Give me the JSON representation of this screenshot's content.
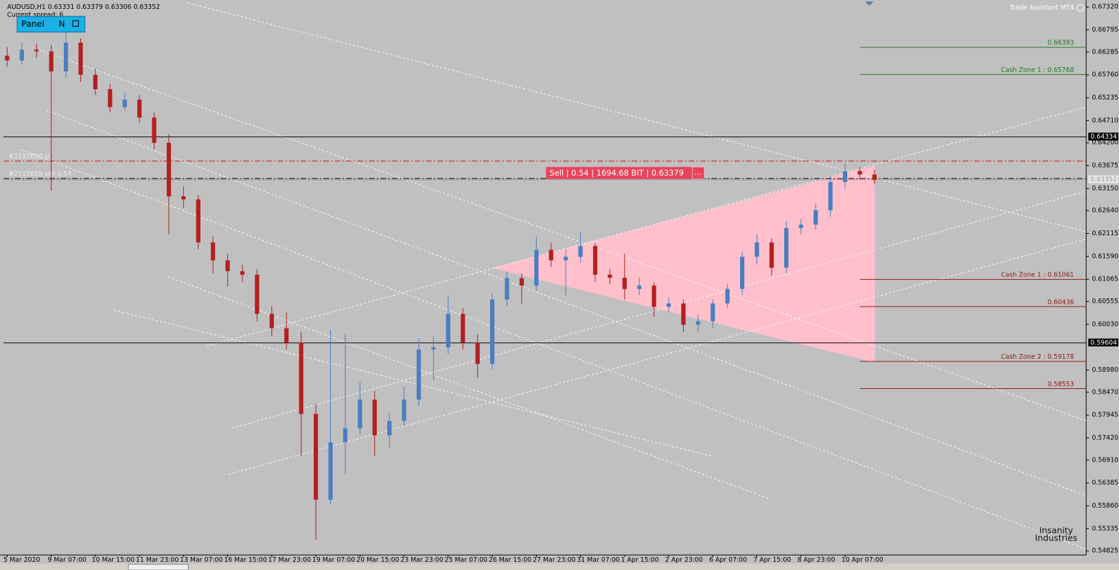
{
  "chart_data": {
    "type": "candlestick",
    "title": "AUDUSD,H1 0.63331 0.63379 0.63306 0.63352",
    "spread": "Current spread: 6",
    "panel_button": "Panel",
    "panel_mode": "N",
    "assistant": "Trade Assistant MT4",
    "logo": [
      "Insanity",
      "Industries"
    ],
    "sell_box": {
      "label": "Sell | 0.54 | 1694.68 BIT | 0.63379",
      "more": "..."
    },
    "bull_color": "#4a7ec0",
    "bear_color": "#b32020",
    "categories": [
      "5 Mar 2020",
      null,
      null,
      "9 Mar 07:00",
      null,
      null,
      "10 Mar 15:00",
      null,
      null,
      "11 Mar 23:00",
      null,
      null,
      "13 Mar 07:00",
      null,
      null,
      "16 Mar 15:00",
      null,
      null,
      "17 Mar 23:00",
      null,
      null,
      "19 Mar 07:00",
      null,
      null,
      "20 Mar 15:00",
      null,
      null,
      "23 Mar 23:00",
      null,
      null,
      "25 Mar 07:00",
      null,
      null,
      "26 Mar 15:00",
      null,
      null,
      "27 Mar 23:00",
      null,
      null,
      "31 Mar 07:00",
      null,
      null,
      "1 Apr 15:00",
      null,
      null,
      "2 Apr 23:00",
      null,
      null,
      "6 Apr 07:00",
      null,
      null,
      "7 Apr 15:00",
      null,
      null,
      "8 Apr 23:00",
      null,
      null,
      "10 Apr 07:00",
      null,
      null
    ],
    "open": [
      0.662,
      0.6609,
      0.6634,
      0.663,
      0.6584,
      0.665,
      0.6576,
      0.6543,
      0.6502,
      0.6519,
      0.6478,
      0.642,
      0.6297,
      0.629,
      0.6191,
      0.615,
      0.6125,
      0.6117,
      0.6027,
      0.5994,
      0.5961,
      0.5797,
      0.56,
      0.5732,
      0.5764,
      0.583,
      0.5748,
      0.5781,
      0.583,
      0.5945,
      0.595,
      0.6027,
      0.5961,
      0.5912,
      0.606,
      0.6109,
      0.6092,
      0.6174,
      0.615,
      0.6158,
      0.6183,
      0.6117,
      0.611,
      0.6084,
      0.6092,
      0.6043,
      0.6051,
      0.6002,
      0.601,
      0.6051,
      0.6084,
      0.6158,
      0.6191,
      0.6133,
      0.6224,
      0.6232,
      0.6265,
      0.633,
      0.6355,
      0.6347
    ],
    "high": [
      0.664,
      0.665,
      0.6648,
      0.6645,
      0.669,
      0.666,
      0.659,
      0.6555,
      0.6535,
      0.653,
      0.649,
      0.644,
      0.632,
      0.63,
      0.6205,
      0.6165,
      0.614,
      0.613,
      0.6045,
      0.603,
      0.5985,
      0.582,
      0.599,
      0.598,
      0.587,
      0.585,
      0.58,
      0.586,
      0.597,
      0.5975,
      0.607,
      0.604,
      0.598,
      0.6075,
      0.6125,
      0.612,
      0.6205,
      0.619,
      0.6175,
      0.6215,
      0.619,
      0.613,
      0.6165,
      0.611,
      0.61,
      0.6065,
      0.606,
      0.6025,
      0.606,
      0.6095,
      0.617,
      0.621,
      0.62,
      0.624,
      0.6245,
      0.628,
      0.6345,
      0.6372,
      0.6365,
      0.6358
    ],
    "low": [
      0.6595,
      0.66,
      0.6615,
      0.631,
      0.657,
      0.656,
      0.653,
      0.649,
      0.6495,
      0.6465,
      0.6405,
      0.621,
      0.627,
      0.6175,
      0.612,
      0.609,
      0.61,
      0.601,
      0.5975,
      0.5945,
      0.57,
      0.5508,
      0.559,
      0.566,
      0.575,
      0.57,
      0.572,
      0.577,
      0.5815,
      0.5875,
      0.5935,
      0.5945,
      0.588,
      0.59,
      0.6045,
      0.605,
      0.608,
      0.6135,
      0.607,
      0.6145,
      0.61,
      0.6095,
      0.606,
      0.607,
      0.602,
      0.603,
      0.5985,
      0.5985,
      0.5995,
      0.604,
      0.607,
      0.614,
      0.6115,
      0.612,
      0.621,
      0.622,
      0.625,
      0.6315,
      0.6335,
      0.6325
    ],
    "close": [
      0.6609,
      0.6634,
      0.663,
      0.6584,
      0.665,
      0.6576,
      0.6543,
      0.6502,
      0.6519,
      0.6478,
      0.642,
      0.6297,
      0.629,
      0.6191,
      0.615,
      0.6125,
      0.6117,
      0.6027,
      0.5994,
      0.5961,
      0.5797,
      0.56,
      0.5732,
      0.5764,
      0.583,
      0.5748,
      0.5781,
      0.583,
      0.5945,
      0.595,
      0.6027,
      0.5961,
      0.5912,
      0.606,
      0.6109,
      0.6092,
      0.6174,
      0.615,
      0.6158,
      0.6183,
      0.6117,
      0.611,
      0.6084,
      0.6092,
      0.6043,
      0.6051,
      0.6002,
      0.601,
      0.6051,
      0.6084,
      0.6158,
      0.6191,
      0.6133,
      0.6224,
      0.6232,
      0.6265,
      0.633,
      0.6355,
      0.6347,
      0.6335
    ],
    "ylim": [
      0.5473,
      0.6748
    ],
    "yticks": [
      {
        "value": 0.6732,
        "label": "0.67320"
      },
      {
        "value": 0.66795,
        "label": "0.66795"
      },
      {
        "value": 0.66285,
        "label": "0.66285"
      },
      {
        "value": 0.6576,
        "label": "0.65760"
      },
      {
        "value": 0.65235,
        "label": "0.65235"
      },
      {
        "value": 0.6471,
        "label": "0.64710"
      },
      {
        "value": 0.642,
        "label": "0.64200"
      },
      {
        "value": 0.63675,
        "label": "0.63675"
      },
      {
        "value": 0.6315,
        "label": "0.63150"
      },
      {
        "value": 0.6264,
        "label": "0.62640"
      },
      {
        "value": 0.62115,
        "label": "0.62115"
      },
      {
        "value": 0.6159,
        "label": "0.61590"
      },
      {
        "value": 0.61065,
        "label": "0.61065"
      },
      {
        "value": 0.60555,
        "label": "0.60555"
      },
      {
        "value": 0.6003,
        "label": "0.60030"
      },
      {
        "value": 0.5898,
        "label": "0.58980"
      },
      {
        "value": 0.5847,
        "label": "0.58470"
      },
      {
        "value": 0.57945,
        "label": "0.57945"
      },
      {
        "value": 0.5742,
        "label": "0.57420"
      },
      {
        "value": 0.5691,
        "label": "0.56910"
      },
      {
        "value": 0.56385,
        "label": "0.56385"
      },
      {
        "value": 0.5586,
        "label": "0.55860"
      },
      {
        "value": 0.55335,
        "label": "0.55335"
      },
      {
        "value": 0.54825,
        "label": "0.54825"
      }
    ],
    "hlines": [
      {
        "value": 0.64334,
        "label": "0.64334"
      },
      {
        "value": 0.59604,
        "label": "0.59604"
      }
    ],
    "current_price": {
      "value": 0.63352,
      "label": "0.63352"
    },
    "sl_line": {
      "value": 0.6378,
      "label": "#2115658 sl"
    },
    "order_line": {
      "value": 0.63379,
      "label": "#2115658 sell 0.54"
    },
    "levels": [
      {
        "value": 0.66393,
        "label": "0.66393",
        "color": "#1f7a1f"
      },
      {
        "value": 0.65768,
        "label": "Cash Zone 1 : 0.65768",
        "color": "#1f7a1f"
      },
      {
        "value": 0.61061,
        "label": "Cash Zone 1 : 0.61061",
        "color": "#8b1a1a"
      },
      {
        "value": 0.60436,
        "label": "0.60436",
        "color": "#8b1a1a"
      },
      {
        "value": 0.59178,
        "label": "Cash Zone 2 : 0.59178",
        "color": "#8b1a1a"
      },
      {
        "value": 0.58553,
        "label": "0.58553",
        "color": "#8b1a1a"
      }
    ]
  }
}
